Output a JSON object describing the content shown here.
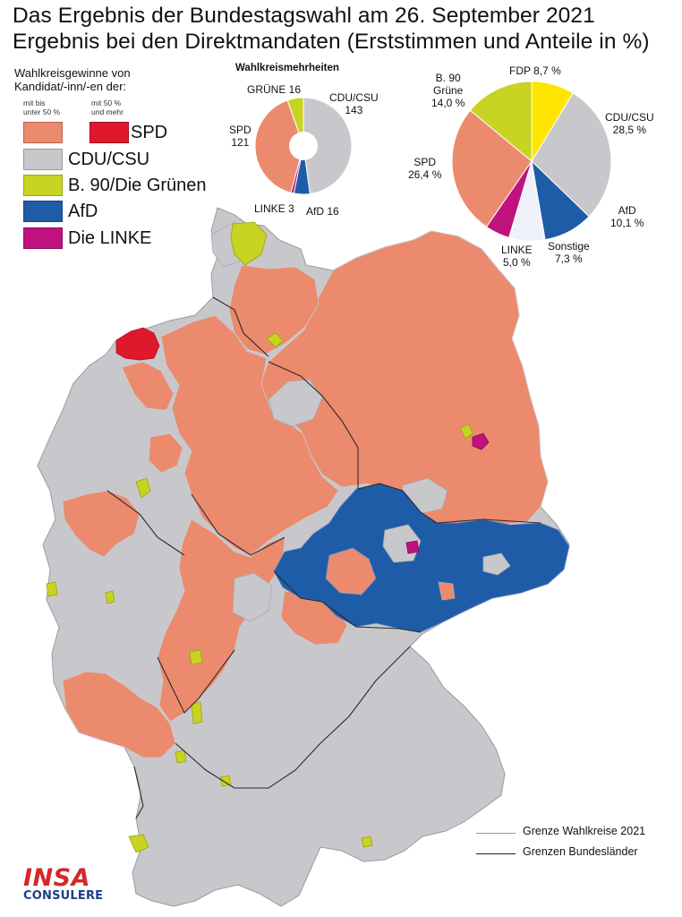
{
  "title": {
    "line1": "Das Ergebnis der Bundestagswahl am 26. September 2021",
    "line2": "Ergebnis bei den Direktmandaten (Erststimmen und Anteile in %)"
  },
  "legend": {
    "heading_line1": "Wahlkreisgewinne von",
    "heading_line2": "Kandidat/-inn/-en der:",
    "sub_left_line1": "mit bis",
    "sub_left_line2": "unter 50 %",
    "sub_right_line1": "mit 50 %",
    "sub_right_line2": "und mehr",
    "items": [
      {
        "label": "SPD",
        "color_light": "#ec8a6e",
        "color_dark": "#e0182d"
      },
      {
        "label": "CDU/CSU",
        "color": "#c8c8cc"
      },
      {
        "label": "B. 90/Die Grünen",
        "color": "#c8d322"
      },
      {
        "label": "AfD",
        "color": "#1f5ca8"
      },
      {
        "label": "Die LINKE",
        "color": "#c0127e"
      }
    ]
  },
  "wahlkreise_pie": {
    "title": "Wahlkreismehrheiten",
    "slices": [
      {
        "name": "CDU/CSU",
        "value": 143,
        "label_line1": "CDU/CSU",
        "label_line2": "143",
        "color": "#c8c8cc"
      },
      {
        "name": "AfD",
        "value": 16,
        "label_line1": "AfD 16",
        "color": "#1f5ca8"
      },
      {
        "name": "LINKE",
        "value": 3,
        "label_line1": "LINKE 3",
        "color": "#c0127e"
      },
      {
        "name": "SPD",
        "value": 121,
        "label_line1": "SPD",
        "label_line2": "121",
        "color": "#ec8a6e"
      },
      {
        "name": "GRÜNE",
        "value": 16,
        "label_line1": "GRÜNE 16",
        "color": "#c8d322"
      }
    ]
  },
  "anteile_pie": {
    "slices": [
      {
        "name": "FDP",
        "value": 8.7,
        "label_line1": "FDP 8,7 %",
        "color": "#ffe500"
      },
      {
        "name": "CDU/CSU",
        "value": 28.5,
        "label_line1": "CDU/CSU",
        "label_line2": "28,5 %",
        "color": "#c8c8cc"
      },
      {
        "name": "AfD",
        "value": 10.1,
        "label_line1": "AfD",
        "label_line2": "10,1 %",
        "color": "#1f5ca8"
      },
      {
        "name": "Sonstige",
        "value": 7.3,
        "label_line1": "Sonstige",
        "label_line2": "7,3 %",
        "color": "#eef2f8"
      },
      {
        "name": "LINKE",
        "value": 5.0,
        "label_line1": "LINKE",
        "label_line2": "5,0 %",
        "color": "#c0127e"
      },
      {
        "name": "SPD",
        "value": 26.4,
        "label_line1": "SPD",
        "label_line2": "26,4 %",
        "color": "#ec8a6e"
      },
      {
        "name": "B. 90 Grüne",
        "value": 14.0,
        "label_line1": "B. 90",
        "label_line2": "Grüne",
        "label_line3": "14,0 %",
        "color": "#c8d322"
      }
    ]
  },
  "map_legend": {
    "wahlkreis_border": "Grenze Wahlkreise 2021",
    "land_border": "Grenzen Bundesländer"
  },
  "logo": {
    "top": "INSA",
    "bottom": "CONSULERE"
  }
}
